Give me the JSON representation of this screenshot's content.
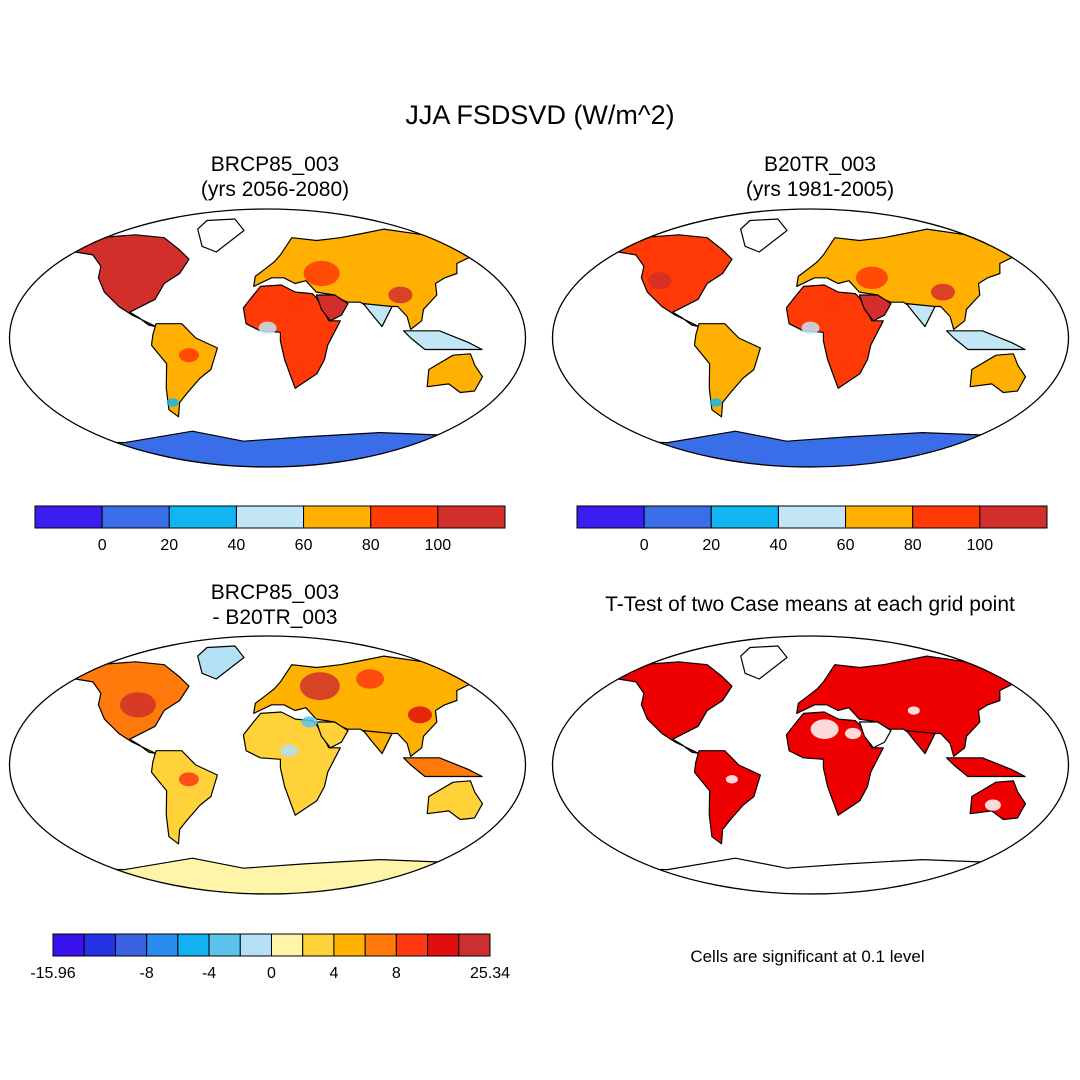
{
  "main_title": "JJA FSDSVD (W/m^2)",
  "colors": {
    "ocean": "#ffffff",
    "coast": "#000000",
    "signif": "#ee0000"
  },
  "chart_data": [
    {
      "type": "heatmap",
      "panel": "top-left",
      "title_line1": "BRCP85_003",
      "title_line2": "(yrs 2056-2080)",
      "projection": "Robinson",
      "colorbar": {
        "colors": [
          "#3a1df0",
          "#3a6ee8",
          "#10b6f2",
          "#c2e6f6",
          "#ffb000",
          "#ff3a06",
          "#d22f2c"
        ],
        "tick_labels": [
          "0",
          "20",
          "40",
          "60",
          "80",
          "100"
        ]
      }
    },
    {
      "type": "heatmap",
      "panel": "top-right",
      "title_line1": "B20TR_003",
      "title_line2": "(yrs 1981-2005)",
      "projection": "Robinson",
      "colorbar": {
        "colors": [
          "#3a1df0",
          "#3a6ee8",
          "#10b6f2",
          "#c2e6f6",
          "#ffb000",
          "#ff3a06",
          "#d22f2c"
        ],
        "tick_labels": [
          "0",
          "20",
          "40",
          "60",
          "80",
          "100"
        ]
      }
    },
    {
      "type": "heatmap",
      "panel": "bottom-left",
      "title_line1": "BRCP85_003",
      "title_line2": "- B20TR_003",
      "projection": "Robinson",
      "colorbar": {
        "colors": [
          "#3a12ee",
          "#2434e4",
          "#3a62e0",
          "#2a8cf0",
          "#12b2f2",
          "#5cc4ec",
          "#b4e0f6",
          "#fff5a8",
          "#ffd23a",
          "#ffb200",
          "#ff7a0a",
          "#ff3812",
          "#e00e0e",
          "#cc2f2f"
        ],
        "tick_labels": [
          "-15.96",
          "-8",
          "-4",
          "0",
          "4",
          "8",
          "25.34"
        ]
      }
    },
    {
      "type": "heatmap",
      "panel": "bottom-right",
      "title_line1": "T-Test of two Case means at each grid point",
      "projection": "Robinson",
      "note": "Cells are significant at 0.1 level"
    }
  ]
}
